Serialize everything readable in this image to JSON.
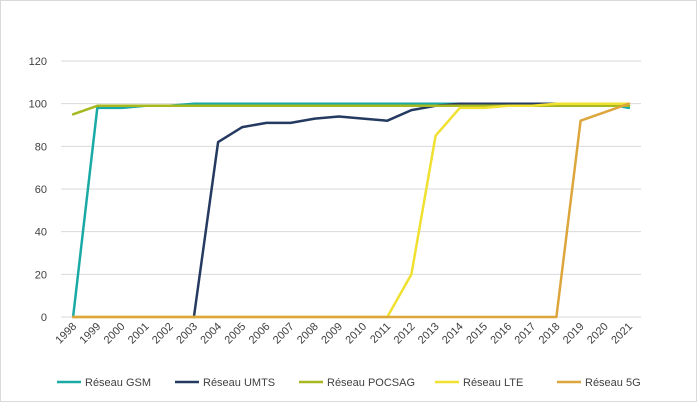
{
  "chart_data": {
    "type": "line",
    "categories": [
      "1998",
      "1999",
      "2000",
      "2001",
      "2002",
      "2003",
      "2004",
      "2005",
      "2006",
      "2007",
      "2008",
      "2009",
      "2010",
      "2011",
      "2012",
      "2013",
      "2014",
      "2015",
      "2016",
      "2017",
      "2018",
      "2019",
      "2020",
      "2021"
    ],
    "ylim": [
      0,
      120
    ],
    "yticks": [
      0,
      20,
      40,
      60,
      80,
      100,
      120
    ],
    "grid": true,
    "legend": "bottom",
    "series": [
      {
        "name": "Réseau GSM",
        "color": "#1aaaa6",
        "values": [
          0,
          98,
          98,
          99,
          99,
          100,
          100,
          100,
          100,
          100,
          100,
          100,
          100,
          100,
          100,
          100,
          100,
          100,
          100,
          100,
          100,
          100,
          100,
          98
        ]
      },
      {
        "name": "Réseau UMTS",
        "color": "#253a60",
        "values": [
          null,
          null,
          null,
          null,
          null,
          0,
          82,
          89,
          91,
          91,
          93,
          94,
          93,
          92,
          97,
          99,
          100,
          100,
          100,
          100,
          100,
          99,
          99,
          99
        ]
      },
      {
        "name": "Réseau POCSAG",
        "color": "#a8b820",
        "values": [
          95,
          99,
          99,
          99,
          99,
          99,
          99,
          99,
          99,
          99,
          99,
          99,
          99,
          99,
          99,
          99,
          99,
          99,
          99,
          99,
          99,
          99,
          99,
          99
        ]
      },
      {
        "name": "Réseau LTE",
        "color": "#f0e030",
        "values": [
          0,
          0,
          0,
          0,
          0,
          0,
          0,
          0,
          0,
          0,
          0,
          0,
          0,
          0,
          20,
          85,
          98,
          98,
          99,
          99,
          100,
          100,
          100,
          100
        ]
      },
      {
        "name": "Réseau 5G",
        "color": "#dca63c",
        "values": [
          0,
          0,
          0,
          0,
          0,
          0,
          0,
          0,
          0,
          0,
          0,
          0,
          0,
          0,
          0,
          0,
          0,
          0,
          0,
          0,
          0,
          92,
          96,
          100
        ]
      }
    ]
  }
}
